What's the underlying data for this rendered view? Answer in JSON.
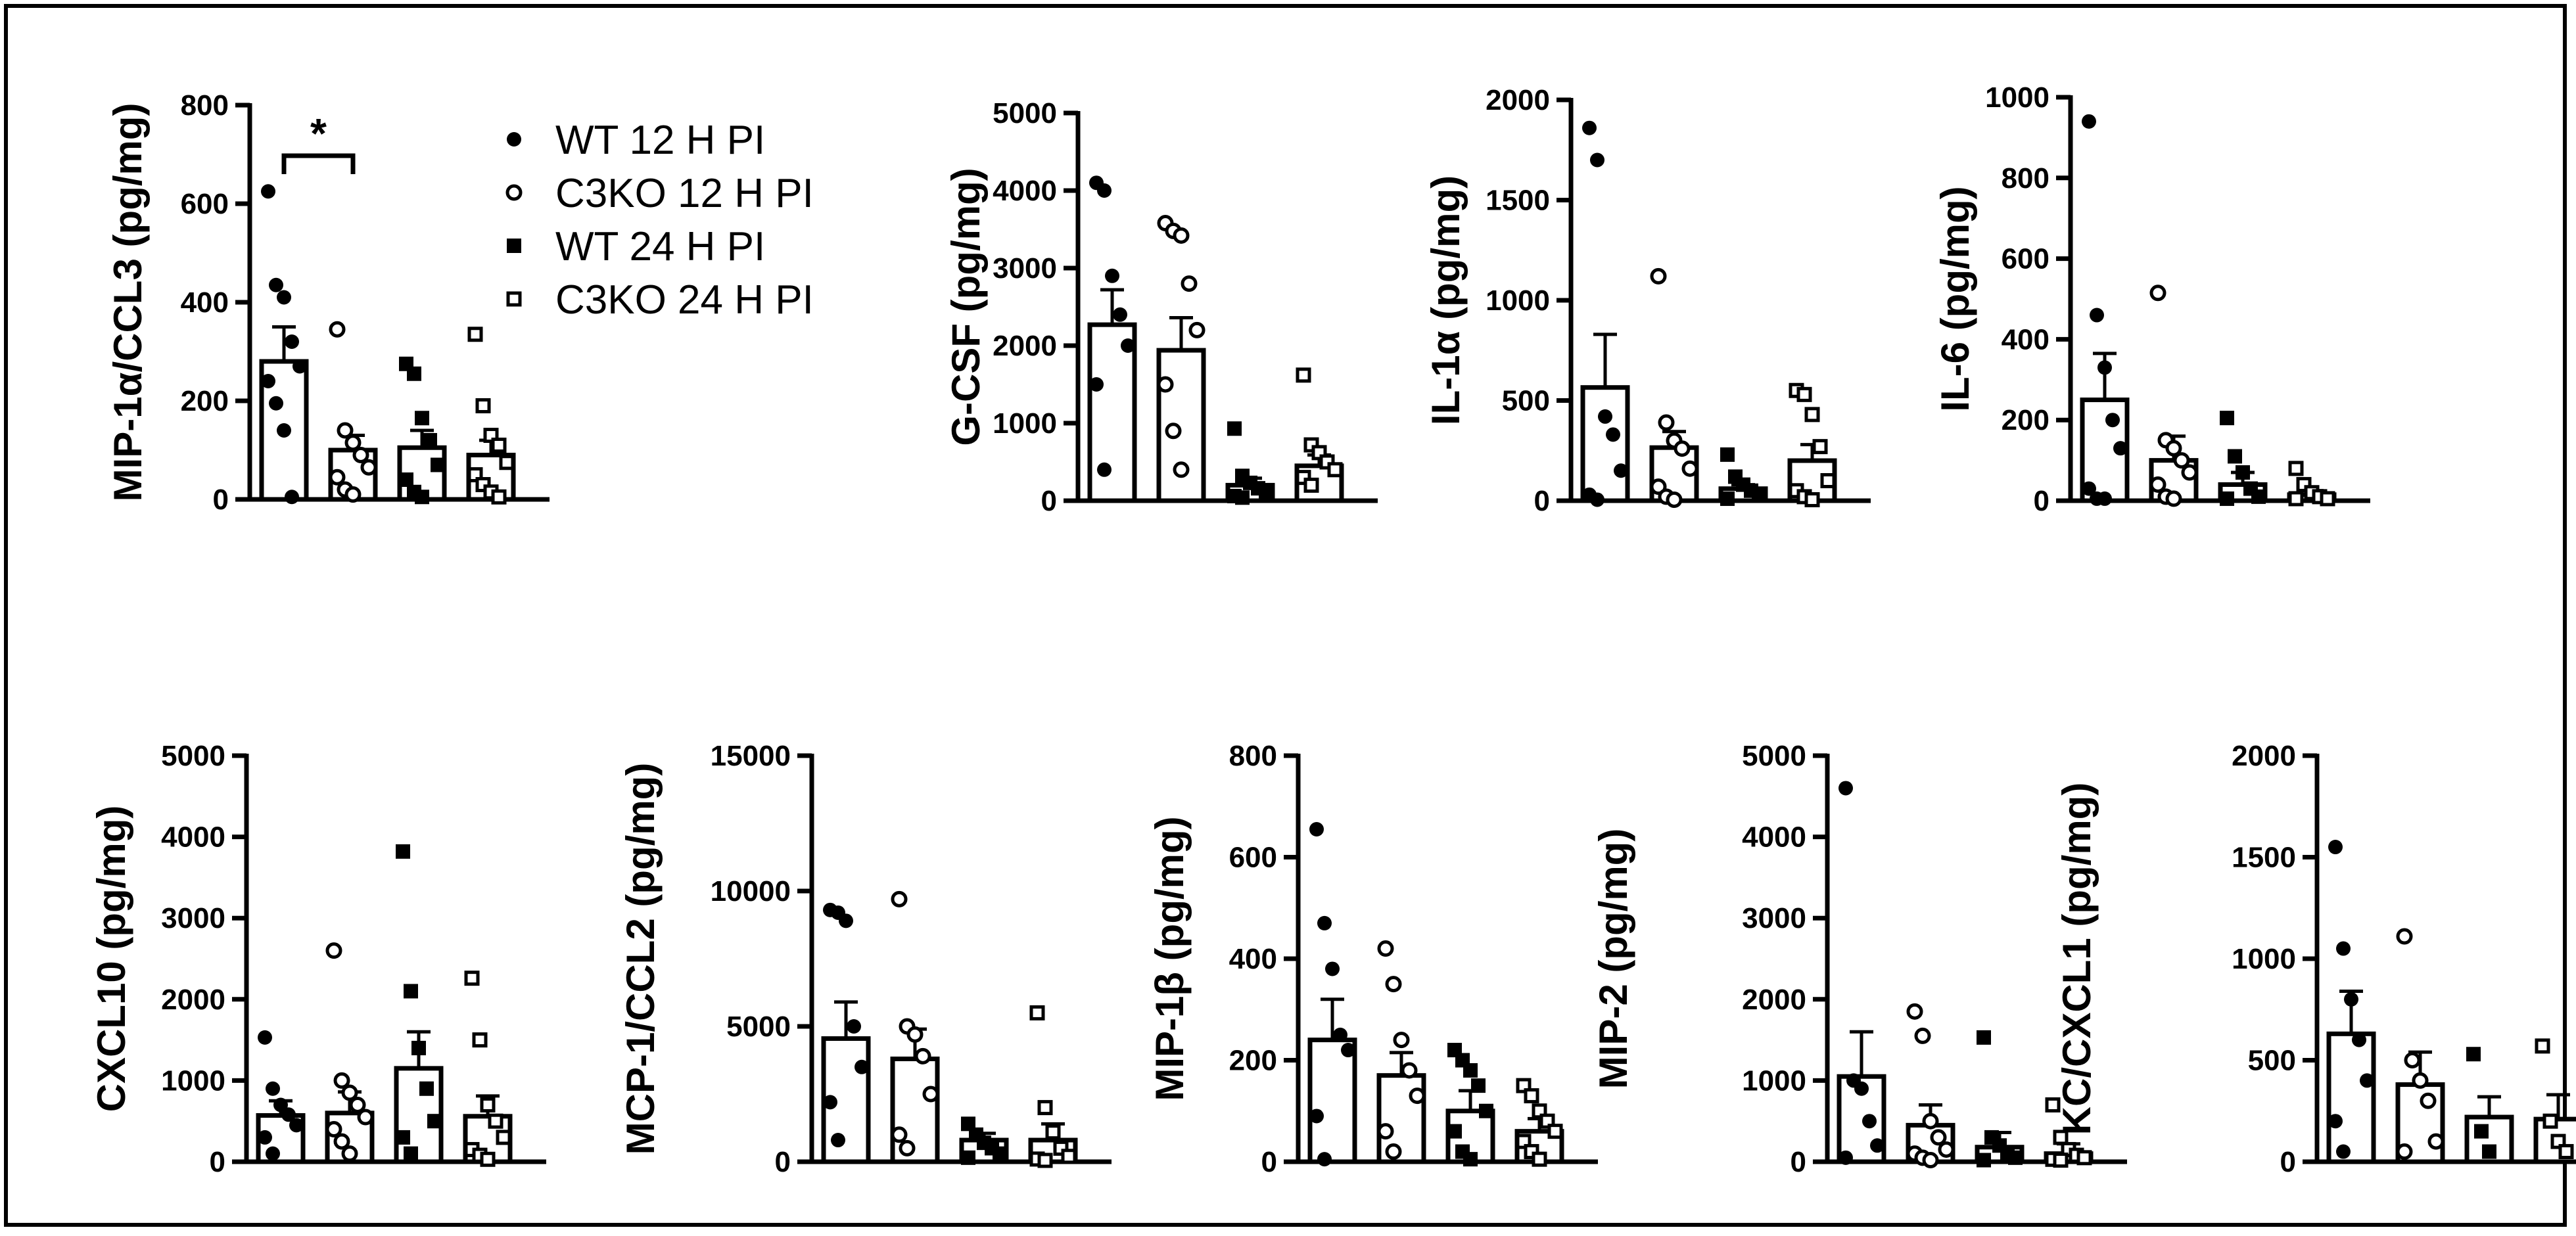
{
  "legend": [
    {
      "label": "WT 12 H PI",
      "marker": "filled-circle"
    },
    {
      "label": "C3KO 12 H PI",
      "marker": "open-circle"
    },
    {
      "label": "WT 24 H PI",
      "marker": "filled-square"
    },
    {
      "label": "C3KO 24 H PI",
      "marker": "open-square"
    }
  ],
  "chart_data": [
    {
      "type": "bar",
      "ylabel": "MIP-1α/CCL3 (pg/mg)",
      "ylim": [
        0,
        800
      ],
      "yticks": [
        0,
        200,
        400,
        600,
        800
      ],
      "categories": [
        "WT 12 H PI",
        "C3KO 12 H PI",
        "WT 24 H PI",
        "C3KO 24 H PI"
      ],
      "values": [
        280,
        100,
        105,
        90
      ],
      "errors": [
        70,
        30,
        35,
        30
      ],
      "points": [
        [
          625,
          435,
          410,
          320,
          270,
          240,
          195,
          140,
          5
        ],
        [
          345,
          140,
          115,
          90,
          65,
          45,
          20,
          10
        ],
        [
          275,
          255,
          165,
          120,
          70,
          40,
          15,
          5
        ],
        [
          335,
          190,
          130,
          110,
          75,
          50,
          30,
          15,
          5
        ]
      ],
      "significance": {
        "from": 0,
        "to": 1,
        "label": "*"
      }
    },
    {
      "type": "bar",
      "ylabel": "G-CSF (pg/mg)",
      "ylim": [
        0,
        5000
      ],
      "yticks": [
        0,
        1000,
        2000,
        3000,
        4000,
        5000
      ],
      "categories": [
        "WT 12 H PI",
        "C3KO 12 H PI",
        "WT 24 H PI",
        "C3KO 24 H PI"
      ],
      "values": [
        2270,
        1940,
        200,
        450
      ],
      "errors": [
        450,
        420,
        90,
        140
      ],
      "points": [
        [
          4100,
          4000,
          2900,
          2400,
          2000,
          1500,
          400
        ],
        [
          3580,
          3480,
          3420,
          2800,
          2200,
          1500,
          900,
          400
        ],
        [
          930,
          320,
          230,
          160,
          100,
          60,
          40
        ],
        [
          1620,
          720,
          620,
          500,
          400,
          300,
          200
        ]
      ]
    },
    {
      "type": "bar",
      "ylabel": "IL-1α (pg/mg)",
      "ylim": [
        0,
        2000
      ],
      "yticks": [
        0,
        500,
        1000,
        1500,
        2000
      ],
      "categories": [
        "WT 12 H PI",
        "C3KO 12 H PI",
        "WT 24 H PI",
        "C3KO 24 H PI"
      ],
      "values": [
        565,
        265,
        60,
        200
      ],
      "errors": [
        265,
        80,
        20,
        80
      ],
      "points": [
        [
          1860,
          1700,
          420,
          330,
          150,
          30,
          5
        ],
        [
          1120,
          390,
          300,
          260,
          160,
          70,
          20,
          5
        ],
        [
          230,
          120,
          80,
          50,
          30,
          10
        ],
        [
          550,
          530,
          430,
          270,
          100,
          50,
          20,
          5
        ]
      ]
    },
    {
      "type": "bar",
      "ylabel": "IL-6 (pg/mg)",
      "ylim": [
        0,
        1000
      ],
      "yticks": [
        0,
        200,
        400,
        600,
        800,
        1000
      ],
      "categories": [
        "WT 12 H PI",
        "C3KO 12 H PI",
        "WT 24 H PI",
        "C3KO 24 H PI"
      ],
      "values": [
        250,
        100,
        40,
        15
      ],
      "errors": [
        115,
        60,
        30,
        10
      ],
      "points": [
        [
          940,
          460,
          330,
          200,
          130,
          30,
          5,
          5
        ],
        [
          515,
          150,
          130,
          100,
          70,
          40,
          10,
          5
        ],
        [
          205,
          110,
          70,
          30,
          10,
          5
        ],
        [
          80,
          40,
          20,
          10,
          5,
          5
        ]
      ]
    },
    {
      "type": "bar",
      "ylabel": "CXCL10 (pg/mg)",
      "ylim": [
        0,
        5000
      ],
      "yticks": [
        0,
        1000,
        2000,
        3000,
        4000,
        5000
      ],
      "categories": [
        "WT 12 H PI",
        "C3KO 12 H PI",
        "WT 24 H PI",
        "C3KO 24 H PI"
      ],
      "values": [
        570,
        600,
        1150,
        560
      ],
      "errors": [
        180,
        260,
        450,
        250
      ],
      "points": [
        [
          1530,
          900,
          700,
          580,
          450,
          300,
          100
        ],
        [
          2600,
          1000,
          850,
          700,
          550,
          400,
          250,
          100
        ],
        [
          3820,
          2100,
          1400,
          900,
          500,
          300,
          100
        ],
        [
          2260,
          1500,
          700,
          500,
          300,
          150,
          80,
          30
        ]
      ]
    },
    {
      "type": "bar",
      "ylabel": "MCP-1/CCL2 (pg/mg)",
      "ylim": [
        0,
        15000
      ],
      "yticks": [
        0,
        5000,
        10000,
        15000
      ],
      "categories": [
        "WT 12 H PI",
        "C3KO 12 H PI",
        "WT 24 H PI",
        "C3KO 24 H PI"
      ],
      "values": [
        4550,
        3800,
        800,
        800
      ],
      "errors": [
        1350,
        1100,
        250,
        600
      ],
      "points": [
        [
          9300,
          9200,
          8900,
          5000,
          3500,
          2200,
          800
        ],
        [
          9700,
          5000,
          4700,
          3900,
          2500,
          1000,
          500
        ],
        [
          1400,
          1000,
          700,
          500,
          300,
          150
        ],
        [
          5500,
          2000,
          1100,
          500,
          200,
          100,
          50
        ]
      ]
    },
    {
      "type": "bar",
      "ylabel": "MIP-1β (pg/mg)",
      "ylim": [
        0,
        800
      ],
      "yticks": [
        0,
        200,
        400,
        600,
        800
      ],
      "categories": [
        "WT 12 H PI",
        "C3KO 12 H PI",
        "WT 24 H PI",
        "C3KO 24 H PI"
      ],
      "values": [
        240,
        170,
        100,
        60
      ],
      "errors": [
        80,
        45,
        40,
        25
      ],
      "points": [
        [
          655,
          470,
          380,
          250,
          220,
          90,
          5
        ],
        [
          420,
          350,
          240,
          180,
          130,
          60,
          20
        ],
        [
          220,
          200,
          180,
          150,
          100,
          60,
          20,
          5
        ],
        [
          150,
          130,
          100,
          80,
          60,
          40,
          20,
          5
        ]
      ]
    },
    {
      "type": "bar",
      "ylabel": "MIP-2 (pg/mg)",
      "ylim": [
        0,
        5000
      ],
      "yticks": [
        0,
        1000,
        2000,
        3000,
        4000,
        5000
      ],
      "categories": [
        "WT 12 H PI",
        "C3KO 12 H PI",
        "WT 24 H PI",
        "C3KO 24 H PI"
      ],
      "values": [
        1050,
        450,
        180,
        100
      ],
      "errors": [
        550,
        250,
        180,
        120
      ],
      "points": [
        [
          4600,
          1000,
          900,
          500,
          200,
          50
        ],
        [
          1850,
          1550,
          500,
          300,
          150,
          100,
          50,
          20
        ],
        [
          1530,
          300,
          200,
          100,
          50,
          20
        ],
        [
          700,
          300,
          150,
          80,
          50,
          30,
          20
        ]
      ]
    },
    {
      "type": "bar",
      "ylabel": "KC/CXCL1 (pg/mg)",
      "ylim": [
        0,
        2000
      ],
      "yticks": [
        0,
        500,
        1000,
        1500,
        2000
      ],
      "categories": [
        "WT 12 H PI",
        "C3KO 12 H PI",
        "WT 24 H PI",
        "C3KO 24 H PI"
      ],
      "values": [
        630,
        380,
        220,
        210
      ],
      "errors": [
        210,
        160,
        100,
        120
      ],
      "points": [
        [
          1550,
          1050,
          800,
          600,
          400,
          200,
          50
        ],
        [
          1110,
          500,
          400,
          300,
          100,
          50
        ],
        [
          530,
          150,
          50
        ],
        [
          570,
          200,
          100,
          50
        ]
      ]
    }
  ]
}
